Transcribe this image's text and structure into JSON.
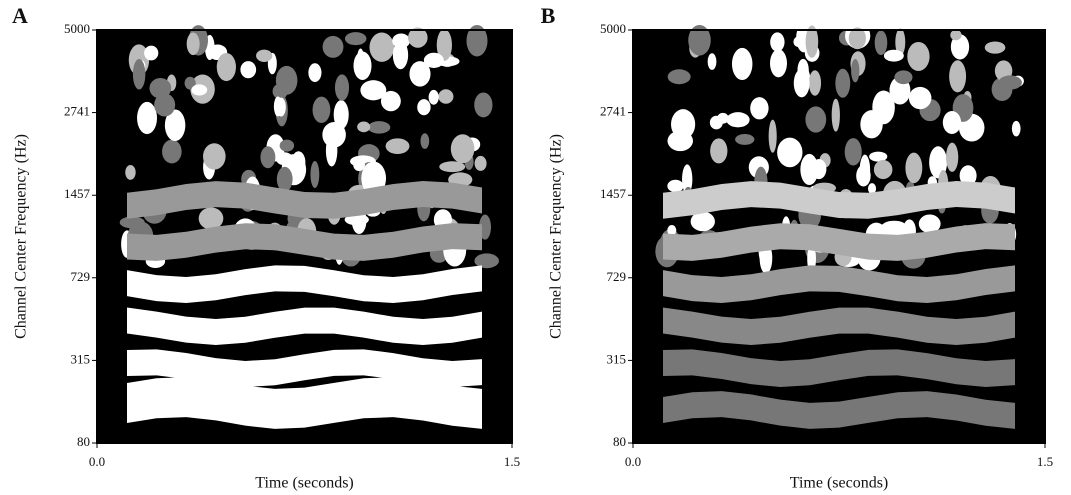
{
  "chart_data": [
    {
      "type": "spectrogram",
      "panel": "A",
      "ylabel": "Channel Center Frequency (Hz)",
      "xlabel": "Time (seconds)",
      "yscale": "erb",
      "ylim": [
        80,
        5000
      ],
      "yticks": [
        80,
        315,
        729,
        1457,
        2741,
        5000
      ],
      "xlim": [
        0,
        1.5
      ],
      "xticks": [
        {
          "value": 0,
          "label": "0.0"
        },
        1.5
      ]
    },
    {
      "type": "spectrogram",
      "panel": "B",
      "ylabel": "Channel Center Frequency (Hz)",
      "xlabel": "Time (seconds)",
      "yscale": "erb",
      "ylim": [
        80,
        5000
      ],
      "yticks": [
        80,
        315,
        729,
        1457,
        2741,
        5000
      ],
      "xlim": [
        0,
        1.5
      ],
      "xticks": [
        {
          "value": 0,
          "label": "0.0"
        },
        1.5
      ]
    }
  ]
}
